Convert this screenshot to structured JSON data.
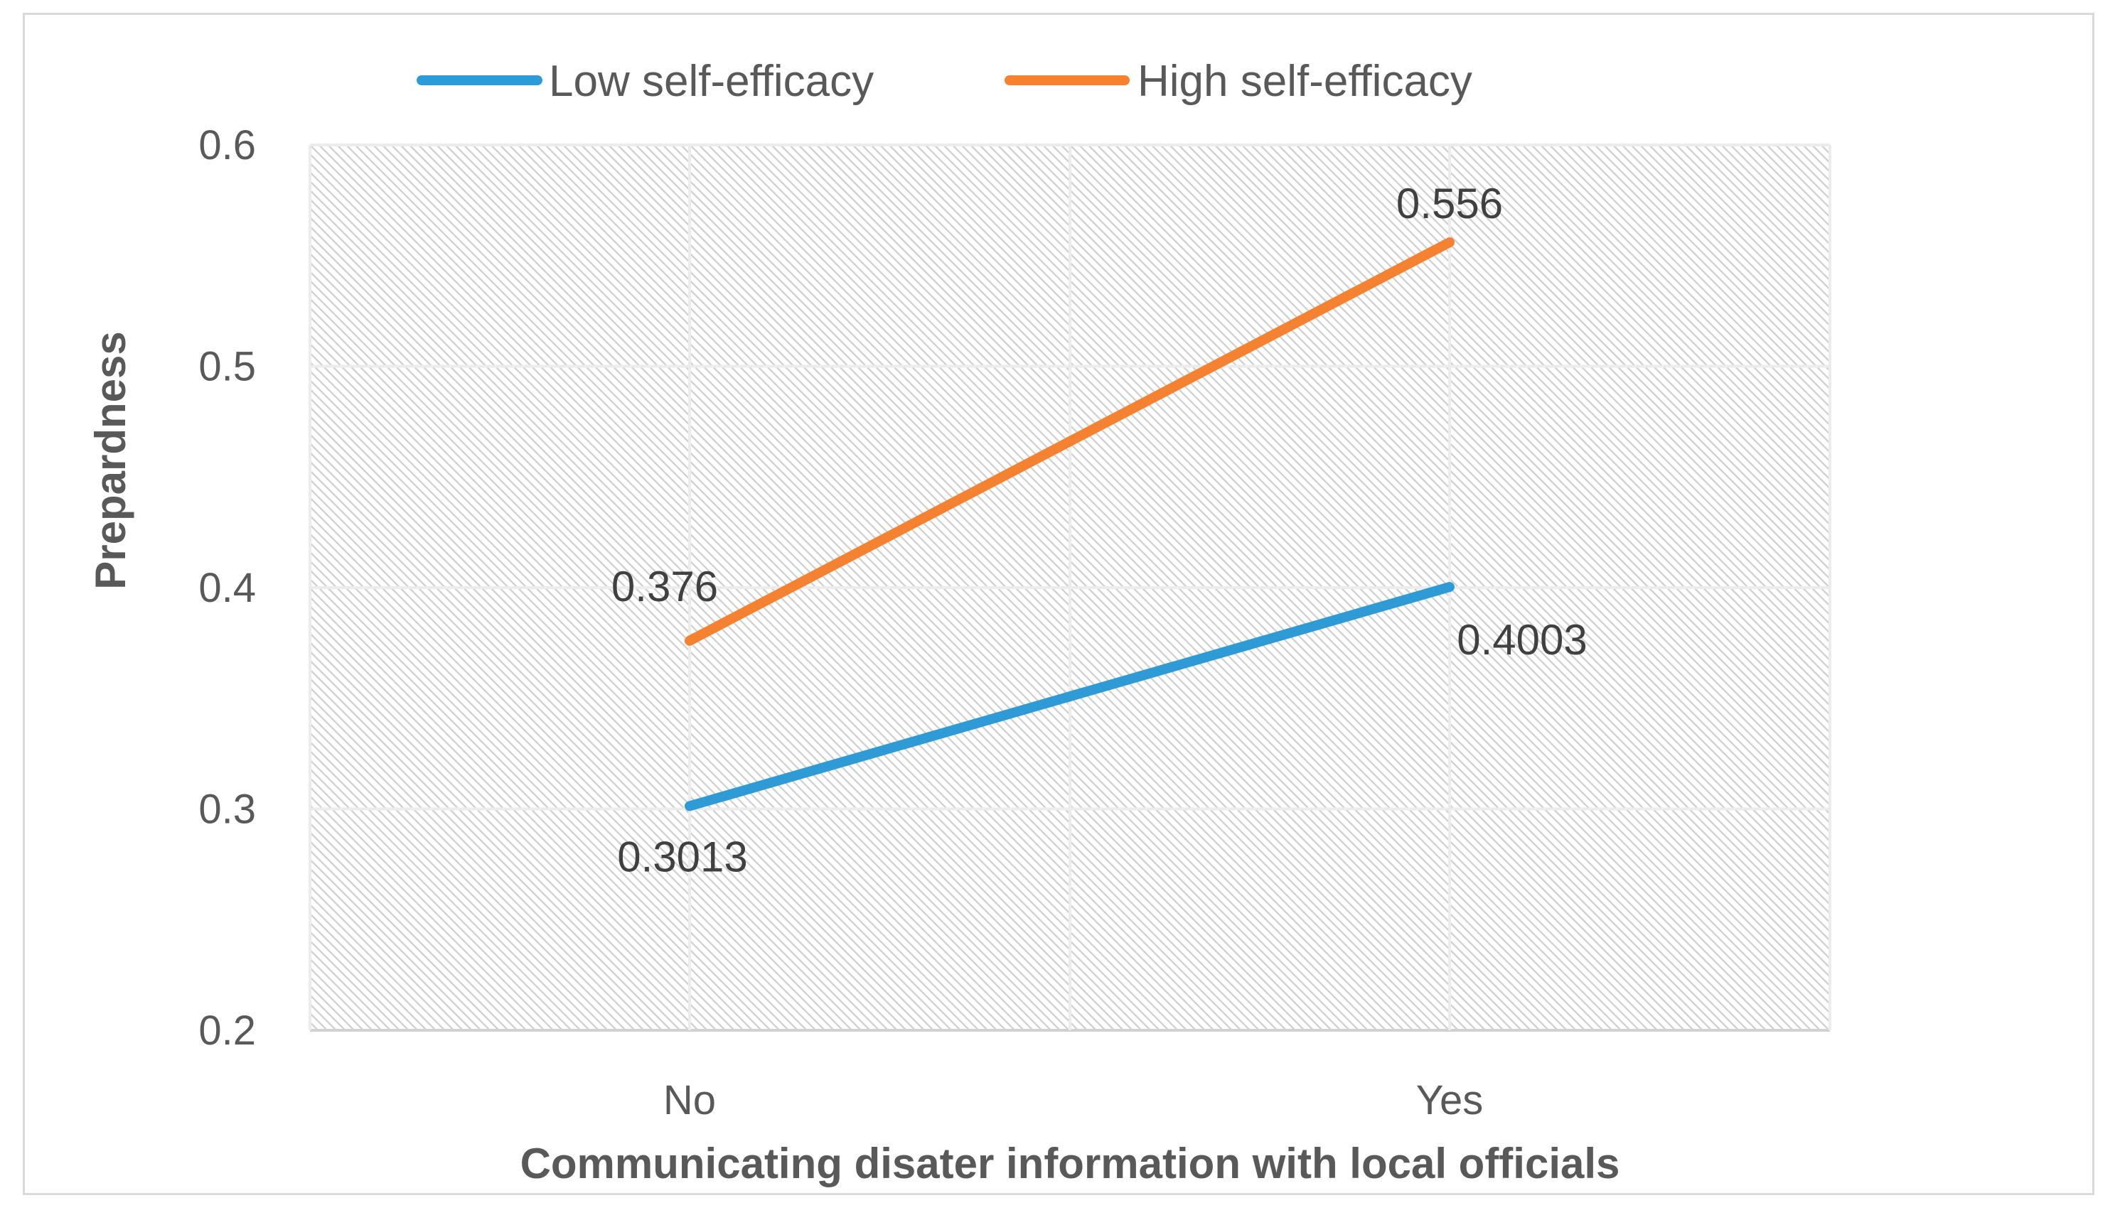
{
  "chart_data": {
    "type": "line",
    "title": "",
    "xlabel": "Communicating disater information with local officials",
    "ylabel": "Prepardness",
    "categories": [
      "No",
      "Yes"
    ],
    "ylim": [
      0.2,
      0.6
    ],
    "yticks": [
      0.2,
      0.3,
      0.4,
      0.5,
      0.6
    ],
    "ytick_labels": [
      "0.2",
      "0.3",
      "0.4",
      "0.5",
      "0.6"
    ],
    "grid": true,
    "legend_position": "top-center",
    "series": [
      {
        "name": "Low self-efficacy",
        "color": "#2e9bd6",
        "values": [
          0.3013,
          0.4003
        ],
        "labels": [
          "0.3013",
          "0.4003"
        ]
      },
      {
        "name": "High self-efficacy",
        "color": "#f58231",
        "values": [
          0.376,
          0.556
        ],
        "labels": [
          "0.376",
          "0.556"
        ]
      }
    ]
  }
}
